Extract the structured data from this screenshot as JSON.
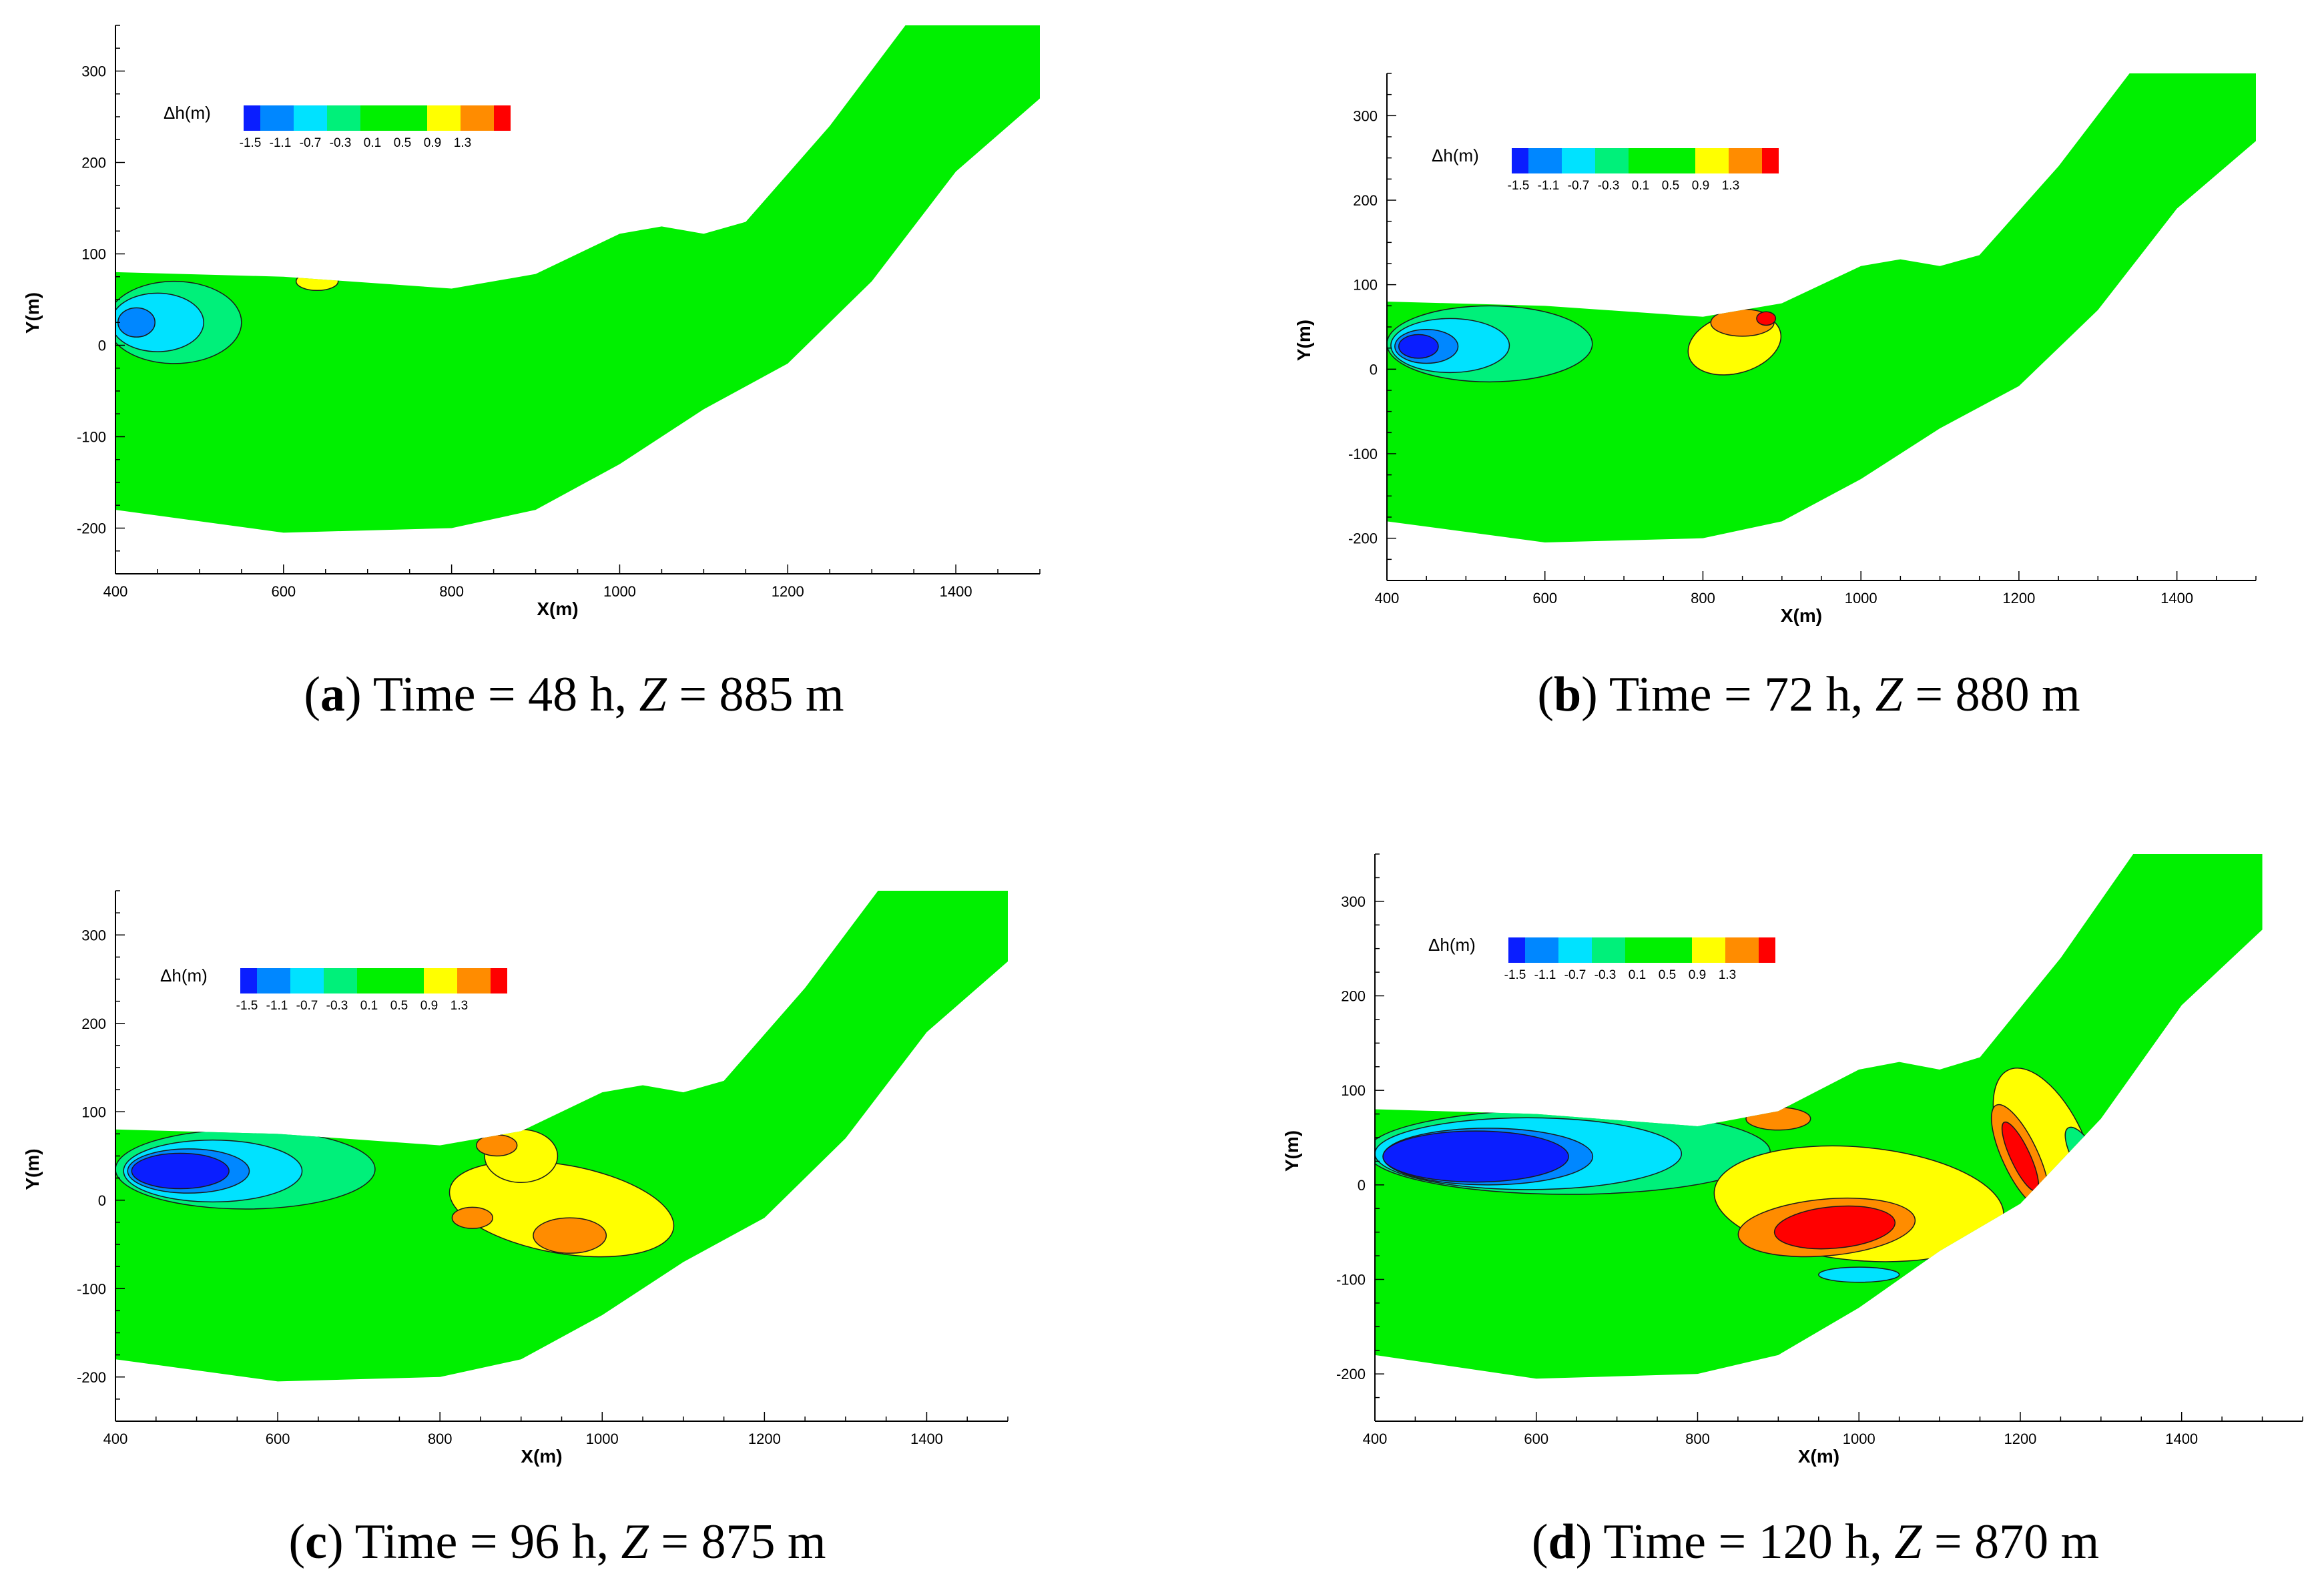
{
  "chart_data": [
    {
      "type": "heatmap",
      "panel": "a",
      "caption": {
        "letter": "a",
        "time": "48 h",
        "z": "885 m"
      },
      "xlabel": "X(m)",
      "ylabel": "Y(m)",
      "xlim": [
        400,
        1500
      ],
      "ylim": [
        -250,
        350
      ],
      "xticks": [
        400,
        600,
        800,
        1000,
        1200,
        1400
      ],
      "yticks": [
        -200,
        -100,
        0,
        100,
        200,
        300
      ],
      "blobs": [
        {
          "level": -0.3,
          "cx": 470,
          "cy": 25,
          "rx": 80,
          "ry": 45
        },
        {
          "level": -0.7,
          "cx": 450,
          "cy": 25,
          "rx": 55,
          "ry": 32
        },
        {
          "level": -1.1,
          "cx": 425,
          "cy": 25,
          "rx": 22,
          "ry": 16
        },
        {
          "level": 0.5,
          "cx": 640,
          "cy": 70,
          "rx": 25,
          "ry": 10
        }
      ]
    },
    {
      "type": "heatmap",
      "panel": "b",
      "caption": {
        "letter": "b",
        "time": "72 h",
        "z": "880 m"
      },
      "xlabel": "X(m)",
      "ylabel": "Y(m)",
      "xlim": [
        400,
        1500
      ],
      "ylim": [
        -250,
        350
      ],
      "xticks": [
        400,
        600,
        800,
        1000,
        1200,
        1400
      ],
      "yticks": [
        -200,
        -100,
        0,
        100,
        200,
        300
      ],
      "blobs": [
        {
          "level": -0.3,
          "cx": 530,
          "cy": 30,
          "rx": 130,
          "ry": 45
        },
        {
          "level": -0.7,
          "cx": 480,
          "cy": 28,
          "rx": 75,
          "ry": 32
        },
        {
          "level": -1.1,
          "cx": 450,
          "cy": 27,
          "rx": 40,
          "ry": 20
        },
        {
          "level": -1.5,
          "cx": 440,
          "cy": 27,
          "rx": 25,
          "ry": 14
        },
        {
          "level": 0.5,
          "cx": 840,
          "cy": 30,
          "rx": 60,
          "ry": 35,
          "rot": 15
        },
        {
          "level": 0.9,
          "cx": 850,
          "cy": 55,
          "rx": 40,
          "ry": 16
        },
        {
          "level": 1.3,
          "cx": 880,
          "cy": 60,
          "rx": 12,
          "ry": 8
        }
      ]
    },
    {
      "type": "heatmap",
      "panel": "c",
      "caption": {
        "letter": "c",
        "time": "96 h",
        "z": "875 m"
      },
      "xlabel": "X(m)",
      "ylabel": "Y(m)",
      "xlim": [
        400,
        1500
      ],
      "ylim": [
        -250,
        350
      ],
      "xticks": [
        400,
        600,
        800,
        1000,
        1200,
        1400
      ],
      "yticks": [
        -200,
        -100,
        0,
        100,
        200,
        300
      ],
      "blobs": [
        {
          "level": -0.3,
          "cx": 560,
          "cy": 35,
          "rx": 160,
          "ry": 45
        },
        {
          "level": -0.7,
          "cx": 520,
          "cy": 33,
          "rx": 110,
          "ry": 35
        },
        {
          "level": -1.1,
          "cx": 490,
          "cy": 33,
          "rx": 75,
          "ry": 25
        },
        {
          "level": -1.5,
          "cx": 480,
          "cy": 33,
          "rx": 60,
          "ry": 20
        },
        {
          "level": 0.5,
          "cx": 950,
          "cy": -10,
          "rx": 140,
          "ry": 50,
          "rot": -10
        },
        {
          "level": 0.5,
          "cx": 900,
          "cy": 50,
          "rx": 45,
          "ry": 30
        },
        {
          "level": 0.9,
          "cx": 960,
          "cy": -40,
          "rx": 45,
          "ry": 20
        },
        {
          "level": 0.9,
          "cx": 840,
          "cy": -20,
          "rx": 25,
          "ry": 12
        },
        {
          "level": 0.9,
          "cx": 870,
          "cy": 62,
          "rx": 25,
          "ry": 12
        }
      ]
    },
    {
      "type": "heatmap",
      "panel": "d",
      "caption": {
        "letter": "d",
        "time": "120 h",
        "z": "870 m"
      },
      "xlabel": "X(m)",
      "ylabel": "Y(m)",
      "xlim": [
        400,
        1550
      ],
      "ylim": [
        -250,
        350
      ],
      "xticks": [
        400,
        600,
        800,
        1000,
        1200,
        1400
      ],
      "yticks": [
        -200,
        -100,
        0,
        100,
        200,
        300
      ],
      "blobs": [
        {
          "level": -0.3,
          "cx": 640,
          "cy": 35,
          "rx": 250,
          "ry": 45
        },
        {
          "level": -0.7,
          "cx": 590,
          "cy": 33,
          "rx": 190,
          "ry": 38
        },
        {
          "level": -1.1,
          "cx": 540,
          "cy": 30,
          "rx": 130,
          "ry": 30
        },
        {
          "level": -1.5,
          "cx": 525,
          "cy": 30,
          "rx": 115,
          "ry": 27
        },
        {
          "level": 0.5,
          "cx": 1000,
          "cy": -20,
          "rx": 180,
          "ry": 60,
          "rot": -5
        },
        {
          "level": 0.5,
          "cx": 1230,
          "cy": 40,
          "rx": 50,
          "ry": 90,
          "rot": 25
        },
        {
          "level": 0.9,
          "cx": 960,
          "cy": -45,
          "rx": 110,
          "ry": 30,
          "rot": 5
        },
        {
          "level": 0.9,
          "cx": 1200,
          "cy": 30,
          "rx": 22,
          "ry": 60,
          "rot": 25
        },
        {
          "level": 0.9,
          "cx": 900,
          "cy": 70,
          "rx": 40,
          "ry": 12
        },
        {
          "level": 1.3,
          "cx": 970,
          "cy": -45,
          "rx": 75,
          "ry": 22,
          "rot": 5
        },
        {
          "level": 1.3,
          "cx": 1200,
          "cy": 30,
          "rx": 12,
          "ry": 40,
          "rot": 25
        },
        {
          "level": -0.3,
          "cx": 1280,
          "cy": 30,
          "rx": 15,
          "ry": 35,
          "rot": 30
        },
        {
          "level": -0.7,
          "cx": 1000,
          "cy": -95,
          "rx": 50,
          "ry": 8
        }
      ]
    }
  ],
  "legend": {
    "title": "Δh(m)",
    "labels": [
      "-1.5",
      "-1.1",
      "-0.7",
      "-0.3",
      "0.1",
      "0.5",
      "0.9",
      "1.3"
    ],
    "colors": [
      "#0a1eff",
      "#0087ff",
      "#00e2ff",
      "#00f07a",
      "#00f000",
      "#ffff00",
      "#ff8c00",
      "#ff0000"
    ]
  },
  "river": {
    "top": [
      [
        400,
        80
      ],
      [
        600,
        75
      ],
      [
        800,
        62
      ],
      [
        900,
        78
      ],
      [
        1000,
        122
      ],
      [
        1050,
        130
      ],
      [
        1100,
        122
      ],
      [
        1150,
        135
      ],
      [
        1250,
        240
      ],
      [
        1340,
        350
      ]
    ],
    "bottom": [
      [
        400,
        -180
      ],
      [
        600,
        -205
      ],
      [
        800,
        -200
      ],
      [
        900,
        -180
      ],
      [
        1000,
        -130
      ],
      [
        1100,
        -70
      ],
      [
        1200,
        -20
      ],
      [
        1300,
        70
      ],
      [
        1400,
        190
      ],
      [
        1500,
        270
      ]
    ],
    "top_end": 1500
  }
}
